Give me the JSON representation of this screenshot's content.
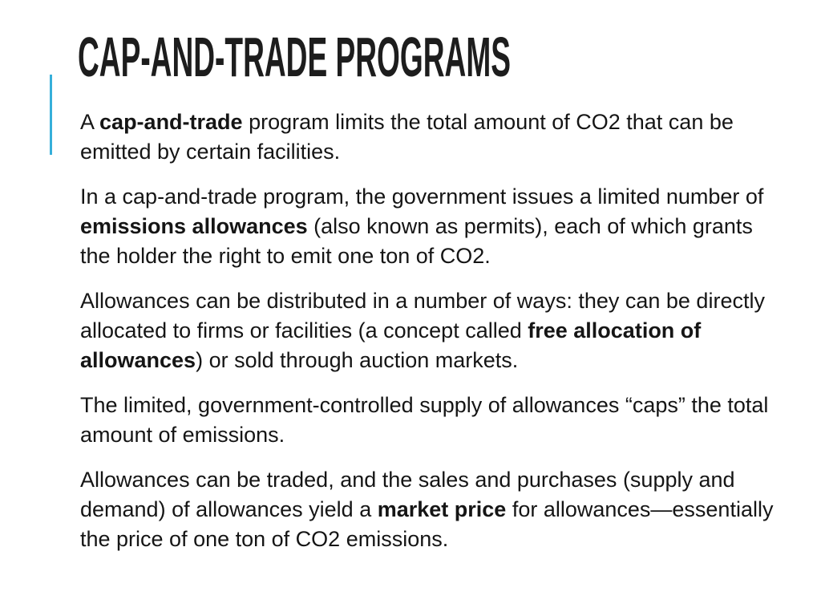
{
  "slide": {
    "title": "CAP-AND-TRADE PROGRAMS",
    "accent_color": "#36afda",
    "text_color": "#151515",
    "paragraphs": [
      {
        "runs": [
          {
            "text": "A ",
            "bold": false
          },
          {
            "text": "cap-and-trade",
            "bold": true
          },
          {
            "text": " program limits the total amount of CO2 that can be emitted by certain facilities.",
            "bold": false
          }
        ]
      },
      {
        "runs": [
          {
            "text": "In a cap-and-trade program, the government issues a limited number of ",
            "bold": false
          },
          {
            "text": "emissions allowances",
            "bold": true
          },
          {
            "text": " (also known as permits), each of which grants the holder the right to emit one ton of CO2.",
            "bold": false
          }
        ]
      },
      {
        "runs": [
          {
            "text": "Allowances can be distributed in a number of ways: they can be directly allocated to firms or facilities (a concept called ",
            "bold": false
          },
          {
            "text": "free allocation of allowances",
            "bold": true
          },
          {
            "text": ") or sold through auction markets.",
            "bold": false
          }
        ]
      },
      {
        "runs": [
          {
            "text": "The limited, government-controlled supply of allowances “caps” the total amount of emissions.",
            "bold": false
          }
        ]
      },
      {
        "runs": [
          {
            "text": "Allowances can be traded, and the sales and purchases (supply and demand) of allowances yield a ",
            "bold": false
          },
          {
            "text": "market price",
            "bold": true
          },
          {
            "text": " for allowances—essentially the price of one ton of CO2 emissions.",
            "bold": false
          }
        ]
      }
    ]
  }
}
